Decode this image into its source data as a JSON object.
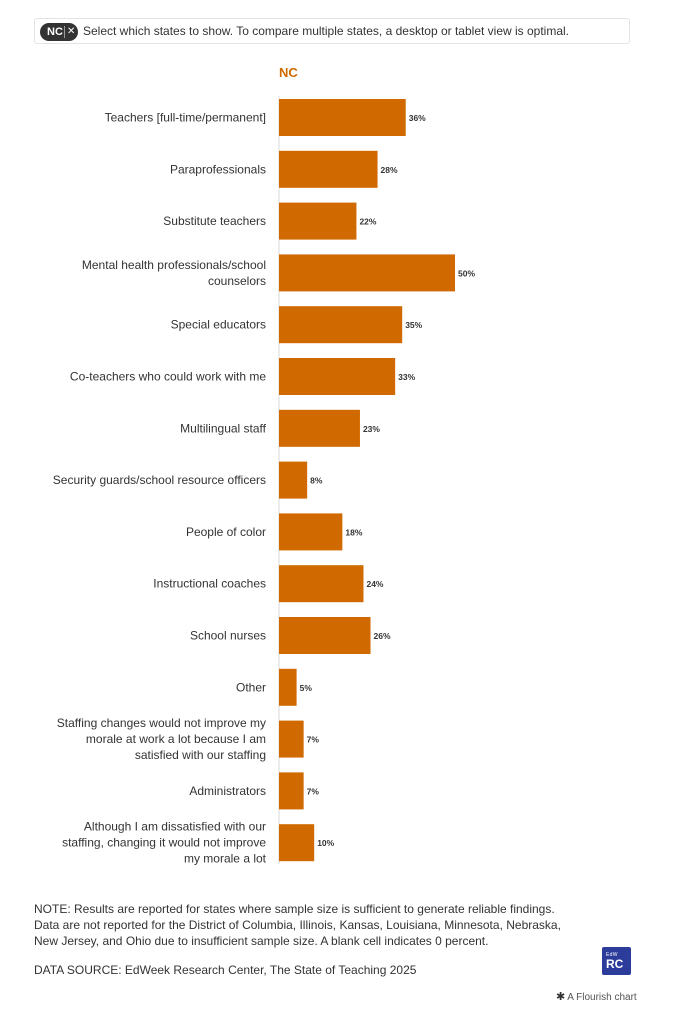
{
  "filter": {
    "chip_label": "NC",
    "close_glyph": "✕",
    "instruction": "Select which states to show. To compare multiple states, a desktop or tablet view is optimal."
  },
  "chart_data": {
    "type": "bar",
    "orientation": "horizontal",
    "panel_title": "NC",
    "bar_color": "#d06a00",
    "panel_title_color": "#d06a00",
    "xlim": [
      0,
      100
    ],
    "grid": false,
    "categories": [
      "Teachers [full-time/permanent]",
      "Paraprofessionals",
      "Substitute teachers",
      "Mental health professionals/school counselors",
      "Special educators",
      "Co-teachers who could work with me",
      "Multilingual staff",
      "Security guards/school resource officers",
      "People of color",
      "Instructional coaches",
      "School nurses",
      "Other",
      "Staffing changes would not improve my morale at work a lot because I am satisfied with our staffing",
      "Administrators",
      "Although I am dissatisfied with our staffing, changing it would not improve my morale a lot"
    ],
    "series": [
      {
        "values": [
          36,
          28,
          22,
          50,
          35,
          33,
          23,
          8,
          18,
          24,
          26,
          5,
          7,
          7,
          10
        ],
        "labels": [
          "36%",
          "28%",
          "22%",
          "50%",
          "35%",
          "33%",
          "23%",
          "8%",
          "18%",
          "24%",
          "26%",
          "5%",
          "7%",
          "7%",
          "10%"
        ]
      }
    ]
  },
  "footer": {
    "note": "NOTE: Results are reported for states where sample size is sufficient to generate reliable findings. Data are not reported for the District of Columbia, Illinois, Kansas, Louisiana, Minnesota, Nebraska, New Jersey, and Ohio due to insufficient sample size. A blank cell indicates 0 percent.",
    "source": "DATA SOURCE: EdWeek Research Center, The State of Teaching 2025",
    "logo_top": "EdW",
    "logo_main": "RC",
    "attribution": "A Flourish chart",
    "attribution_icon": "✱"
  }
}
